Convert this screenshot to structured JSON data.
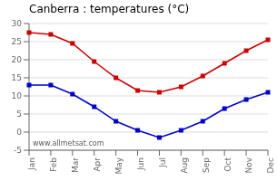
{
  "chart_data": {
    "type": "line",
    "title": "Canberra : temperatures (°C)",
    "categories": [
      "Jan",
      "Feb",
      "Mar",
      "Apr",
      "May",
      "Jun",
      "Jul",
      "Aug",
      "Sep",
      "Oct",
      "Nov",
      "Dec"
    ],
    "series": [
      {
        "color": "#cc0000",
        "marker": "square",
        "values": [
          27.5,
          27.0,
          24.5,
          19.5,
          15.0,
          11.5,
          11.0,
          12.5,
          15.5,
          19.0,
          22.5,
          25.5
        ]
      },
      {
        "color": "#0000cc",
        "marker": "square",
        "values": [
          13.0,
          13.0,
          10.5,
          7.0,
          3.0,
          0.5,
          -1.5,
          0.5,
          3.0,
          6.5,
          9.0,
          11.0
        ]
      }
    ],
    "ylim": [
      -5,
      30
    ],
    "yticks": [
      -5,
      0,
      5,
      10,
      15,
      20,
      25,
      30
    ],
    "grid": true,
    "annotations": [
      "www.allmetsat.com"
    ]
  }
}
